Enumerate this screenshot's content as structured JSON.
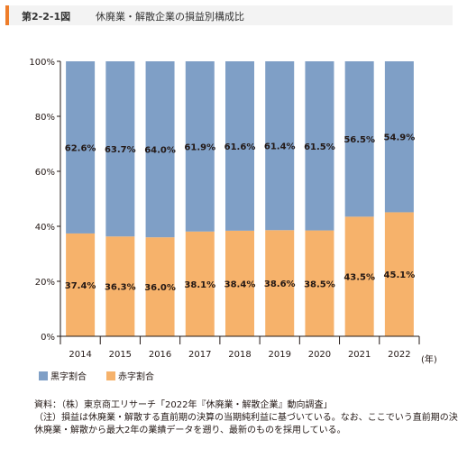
{
  "figure": {
    "number": "第2-2-1図",
    "title": "休廃業・解散企業の損益別構成比"
  },
  "notes": {
    "source": "資料：（株）東京商工リサーチ「2022年『休廃業・解散企業』動向調査」",
    "note1": "（注）損益は休廃業・解散する直前期の決算の当期純利益に基づいている。なお、ここでいう直前期の決算は",
    "note2": "休廃業・解散から最大2年の業績データを遡り、最新のものを採用している。"
  },
  "chart_data": {
    "type": "bar",
    "stacked": true,
    "categories": [
      "2014",
      "2015",
      "2016",
      "2017",
      "2018",
      "2019",
      "2020",
      "2021",
      "2022"
    ],
    "x_unit": "(年)",
    "series": [
      {
        "name": "赤字割合",
        "color": "#f6b26b",
        "values": [
          37.4,
          36.3,
          36.0,
          38.1,
          38.4,
          38.6,
          38.5,
          43.5,
          45.1
        ],
        "labels": [
          "37.4%",
          "36.3%",
          "36.0%",
          "38.1%",
          "38.4%",
          "38.6%",
          "38.5%",
          "43.5%",
          "45.1%"
        ]
      },
      {
        "name": "黒字割合",
        "color": "#7f9fc6",
        "values": [
          62.6,
          63.7,
          64.0,
          61.9,
          61.6,
          61.4,
          61.5,
          56.5,
          54.9
        ],
        "labels": [
          "62.6%",
          "63.7%",
          "64.0%",
          "61.9%",
          "61.6%",
          "61.4%",
          "61.5%",
          "56.5%",
          "54.9%"
        ]
      }
    ],
    "yticks": [
      "0%",
      "20%",
      "40%",
      "60%",
      "80%",
      "100%"
    ],
    "ylim": [
      0,
      100
    ],
    "grid": false,
    "legend_order": [
      "黒字割合",
      "赤字割合"
    ],
    "legend_position": "bottom-left"
  }
}
